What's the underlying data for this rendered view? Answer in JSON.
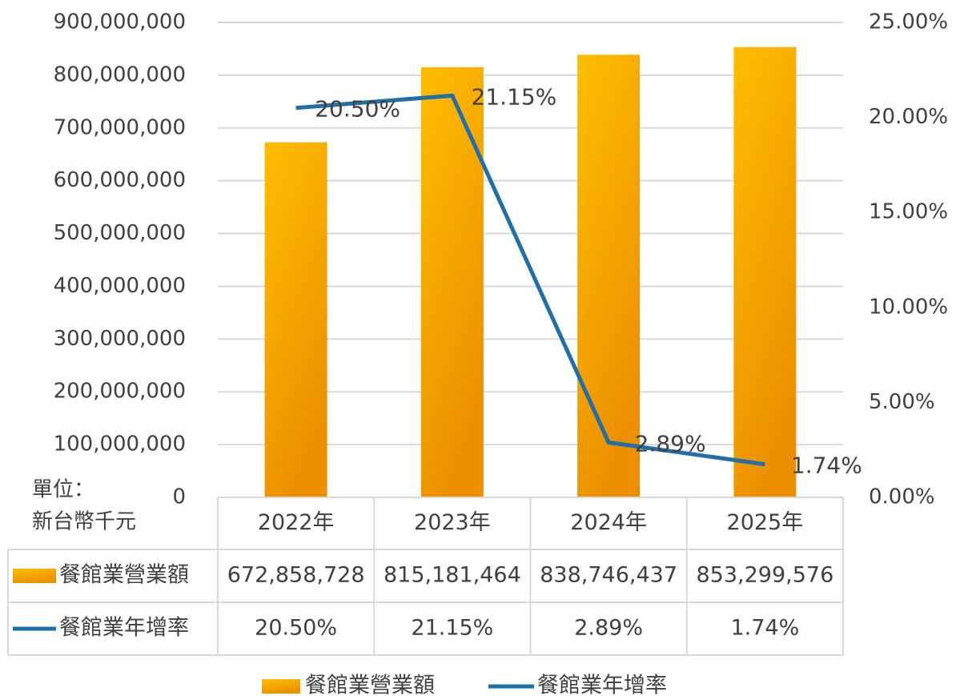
{
  "chart_data": {
    "type": "bar",
    "categories": [
      "2022年",
      "2023年",
      "2024年",
      "2025年"
    ],
    "series": [
      {
        "name": "餐館業營業額",
        "type": "bar",
        "color": "#f5a800",
        "values": [
          672858728,
          815181464,
          838746437,
          853299576
        ],
        "value_labels": [
          "672,858,728",
          "815,181,464",
          "838,746,437",
          "853,299,576"
        ]
      },
      {
        "name": "餐館業年增率",
        "type": "line",
        "axis": "y2",
        "color": "#1f6fa8",
        "values": [
          20.5,
          21.15,
          2.89,
          1.74
        ],
        "value_labels": [
          "20.50%",
          "21.15%",
          "2.89%",
          "1.74%"
        ]
      }
    ],
    "ylim": [
      0,
      900000000
    ],
    "yticks": [
      0,
      {
        "value": 100000000,
        "label": "100,000,000"
      },
      {
        "value": 200000000,
        "label": "200,000,000"
      },
      {
        "value": 300000000,
        "label": "300,000,000"
      },
      {
        "value": 400000000,
        "label": "400,000,000"
      },
      {
        "value": 500000000,
        "label": "500,000,000"
      },
      {
        "value": 600000000,
        "label": "600,000,000"
      },
      {
        "value": 700000000,
        "label": "700,000,000"
      },
      {
        "value": 800000000,
        "label": "800,000,000"
      },
      {
        "value": 900000000,
        "label": "900,000,000"
      }
    ],
    "y2lim": [
      0,
      25
    ],
    "y2ticks": [
      {
        "value": 0,
        "label": "0.00%"
      },
      {
        "value": 5,
        "label": "5.00%"
      },
      {
        "value": 10,
        "label": "10.00%"
      },
      {
        "value": 15,
        "label": "15.00%"
      },
      {
        "value": 20,
        "label": "20.00%"
      },
      {
        "value": 25,
        "label": "25.00%"
      }
    ],
    "unit_label": [
      "單位：",
      "新台幣千元"
    ],
    "grid": true,
    "data_table": true,
    "legend": "bottom"
  }
}
